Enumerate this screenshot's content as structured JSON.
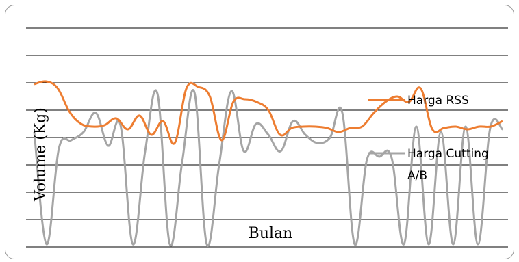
{
  "chart_data": {
    "type": "line",
    "title": "",
    "xlabel": "Bulan",
    "ylabel": "Volume (Kg)",
    "ylim": [
      0,
      8
    ],
    "grid": true,
    "legend_position": "right",
    "series": [
      {
        "name": "Harga RSS",
        "color": "#ed7d31",
        "values": [
          5.95,
          6.05,
          5.8,
          4.95,
          4.5,
          4.4,
          4.45,
          4.7,
          4.3,
          4.8,
          4.1,
          4.6,
          3.8,
          5.8,
          5.85,
          5.5,
          3.9,
          5.3,
          5.4,
          5.3,
          5.0,
          4.1,
          4.35,
          4.4,
          4.4,
          4.35,
          4.2,
          4.35,
          4.4,
          4.9,
          5.3,
          5.5,
          5.3,
          5.8,
          4.3,
          4.35,
          4.4,
          4.3,
          4.4,
          4.4,
          4.6
        ]
      },
      {
        "name": "Harga Cutting A/B",
        "color": "#a5a5a5",
        "values": [
          4.2,
          0.1,
          3.6,
          3.9,
          4.2,
          4.9,
          3.7,
          4.45,
          0.1,
          3.5,
          5.6,
          0.1,
          3.1,
          5.65,
          0.1,
          3.0,
          5.7,
          3.5,
          4.5,
          4.1,
          3.5,
          4.6,
          4.1,
          3.8,
          4.0,
          4.9,
          0.1,
          3.2,
          3.3,
          3.25,
          0.1,
          4.4,
          0.1,
          4.2,
          0.1,
          4.4,
          0.1,
          4.35,
          4.3
        ]
      }
    ]
  }
}
